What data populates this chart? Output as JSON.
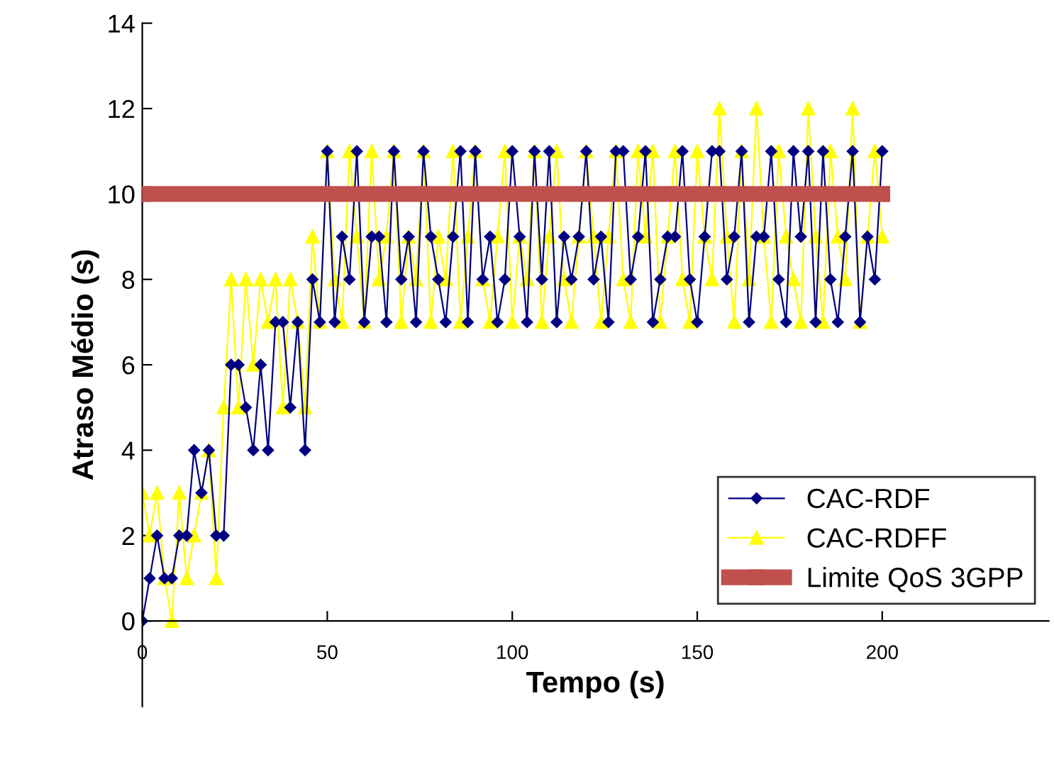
{
  "chart_data": {
    "type": "line",
    "xlabel": "Tempo (s)",
    "ylabel": "Atraso Médio (s)",
    "x": [
      0,
      2,
      4,
      6,
      8,
      10,
      12,
      14,
      16,
      18,
      20,
      22,
      24,
      26,
      28,
      30,
      32,
      34,
      36,
      38,
      40,
      42,
      44,
      46,
      48,
      50,
      52,
      54,
      56,
      58,
      60,
      62,
      64,
      66,
      68,
      70,
      72,
      74,
      76,
      78,
      80,
      82,
      84,
      86,
      88,
      90,
      92,
      94,
      96,
      98,
      100,
      102,
      104,
      106,
      108,
      110,
      112,
      114,
      116,
      118,
      120,
      122,
      124,
      126,
      128,
      130,
      132,
      134,
      136,
      138,
      140,
      142,
      144,
      146,
      148,
      150,
      152,
      154,
      156,
      158,
      160,
      162,
      164,
      166,
      168,
      170,
      172,
      174,
      176,
      178,
      180,
      182,
      184,
      186,
      188,
      190,
      192,
      194,
      196,
      198,
      200
    ],
    "series": [
      {
        "name": "CAC-RDF",
        "color": "#000080",
        "marker": "diamond",
        "values": [
          0,
          1,
          2,
          1,
          1,
          2,
          2,
          4,
          3,
          4,
          2,
          2,
          6,
          6,
          5,
          4,
          6,
          4,
          7,
          7,
          5,
          7,
          4,
          8,
          7,
          11,
          7,
          9,
          8,
          11,
          7,
          9,
          9,
          7,
          11,
          8,
          9,
          7,
          11,
          9,
          8,
          7,
          9,
          11,
          7,
          11,
          8,
          9,
          7,
          8,
          11,
          9,
          7,
          11,
          8,
          11,
          7,
          9,
          8,
          9,
          11,
          8,
          9,
          7,
          11,
          11,
          8,
          9,
          11,
          7,
          8,
          9,
          9,
          11,
          8,
          7,
          9,
          11,
          11,
          8,
          9,
          11,
          7,
          9,
          9,
          11,
          8,
          7,
          11,
          9,
          11,
          7,
          11,
          8,
          7,
          9,
          11,
          7,
          9,
          8,
          11
        ]
      },
      {
        "name": "CAC-RDFF",
        "color": "#ffff00",
        "marker": "triangle",
        "values": [
          3,
          2,
          3,
          1,
          0,
          3,
          1,
          2,
          3,
          4,
          1,
          5,
          8,
          5,
          8,
          6,
          8,
          7,
          8,
          5,
          8,
          7,
          5,
          9,
          7,
          11,
          8,
          7,
          11,
          9,
          7,
          11,
          8,
          9,
          11,
          7,
          9,
          8,
          11,
          7,
          9,
          8,
          11,
          7,
          9,
          11,
          8,
          7,
          9,
          11,
          7,
          9,
          8,
          11,
          7,
          9,
          11,
          8,
          7,
          9,
          11,
          9,
          7,
          9,
          11,
          8,
          7,
          11,
          9,
          11,
          7,
          9,
          11,
          8,
          7,
          11,
          9,
          8,
          12,
          9,
          7,
          11,
          8,
          12,
          9,
          7,
          11,
          9,
          8,
          7,
          12,
          9,
          7,
          11,
          9,
          8,
          12,
          7,
          9,
          11,
          9
        ]
      },
      {
        "name": "Limite QoS 3GPP",
        "color": "#c0504d",
        "marker": "square",
        "x": [
          0,
          200
        ],
        "values": [
          10,
          10
        ]
      }
    ],
    "xlim": [
      0,
      245
    ],
    "xticks": [
      0,
      50,
      100,
      150,
      200
    ],
    "ylim": [
      -2,
      14
    ],
    "yticks": [
      0,
      2,
      4,
      6,
      8,
      10,
      12,
      14
    ],
    "legend": "bottom right",
    "grid": false
  }
}
